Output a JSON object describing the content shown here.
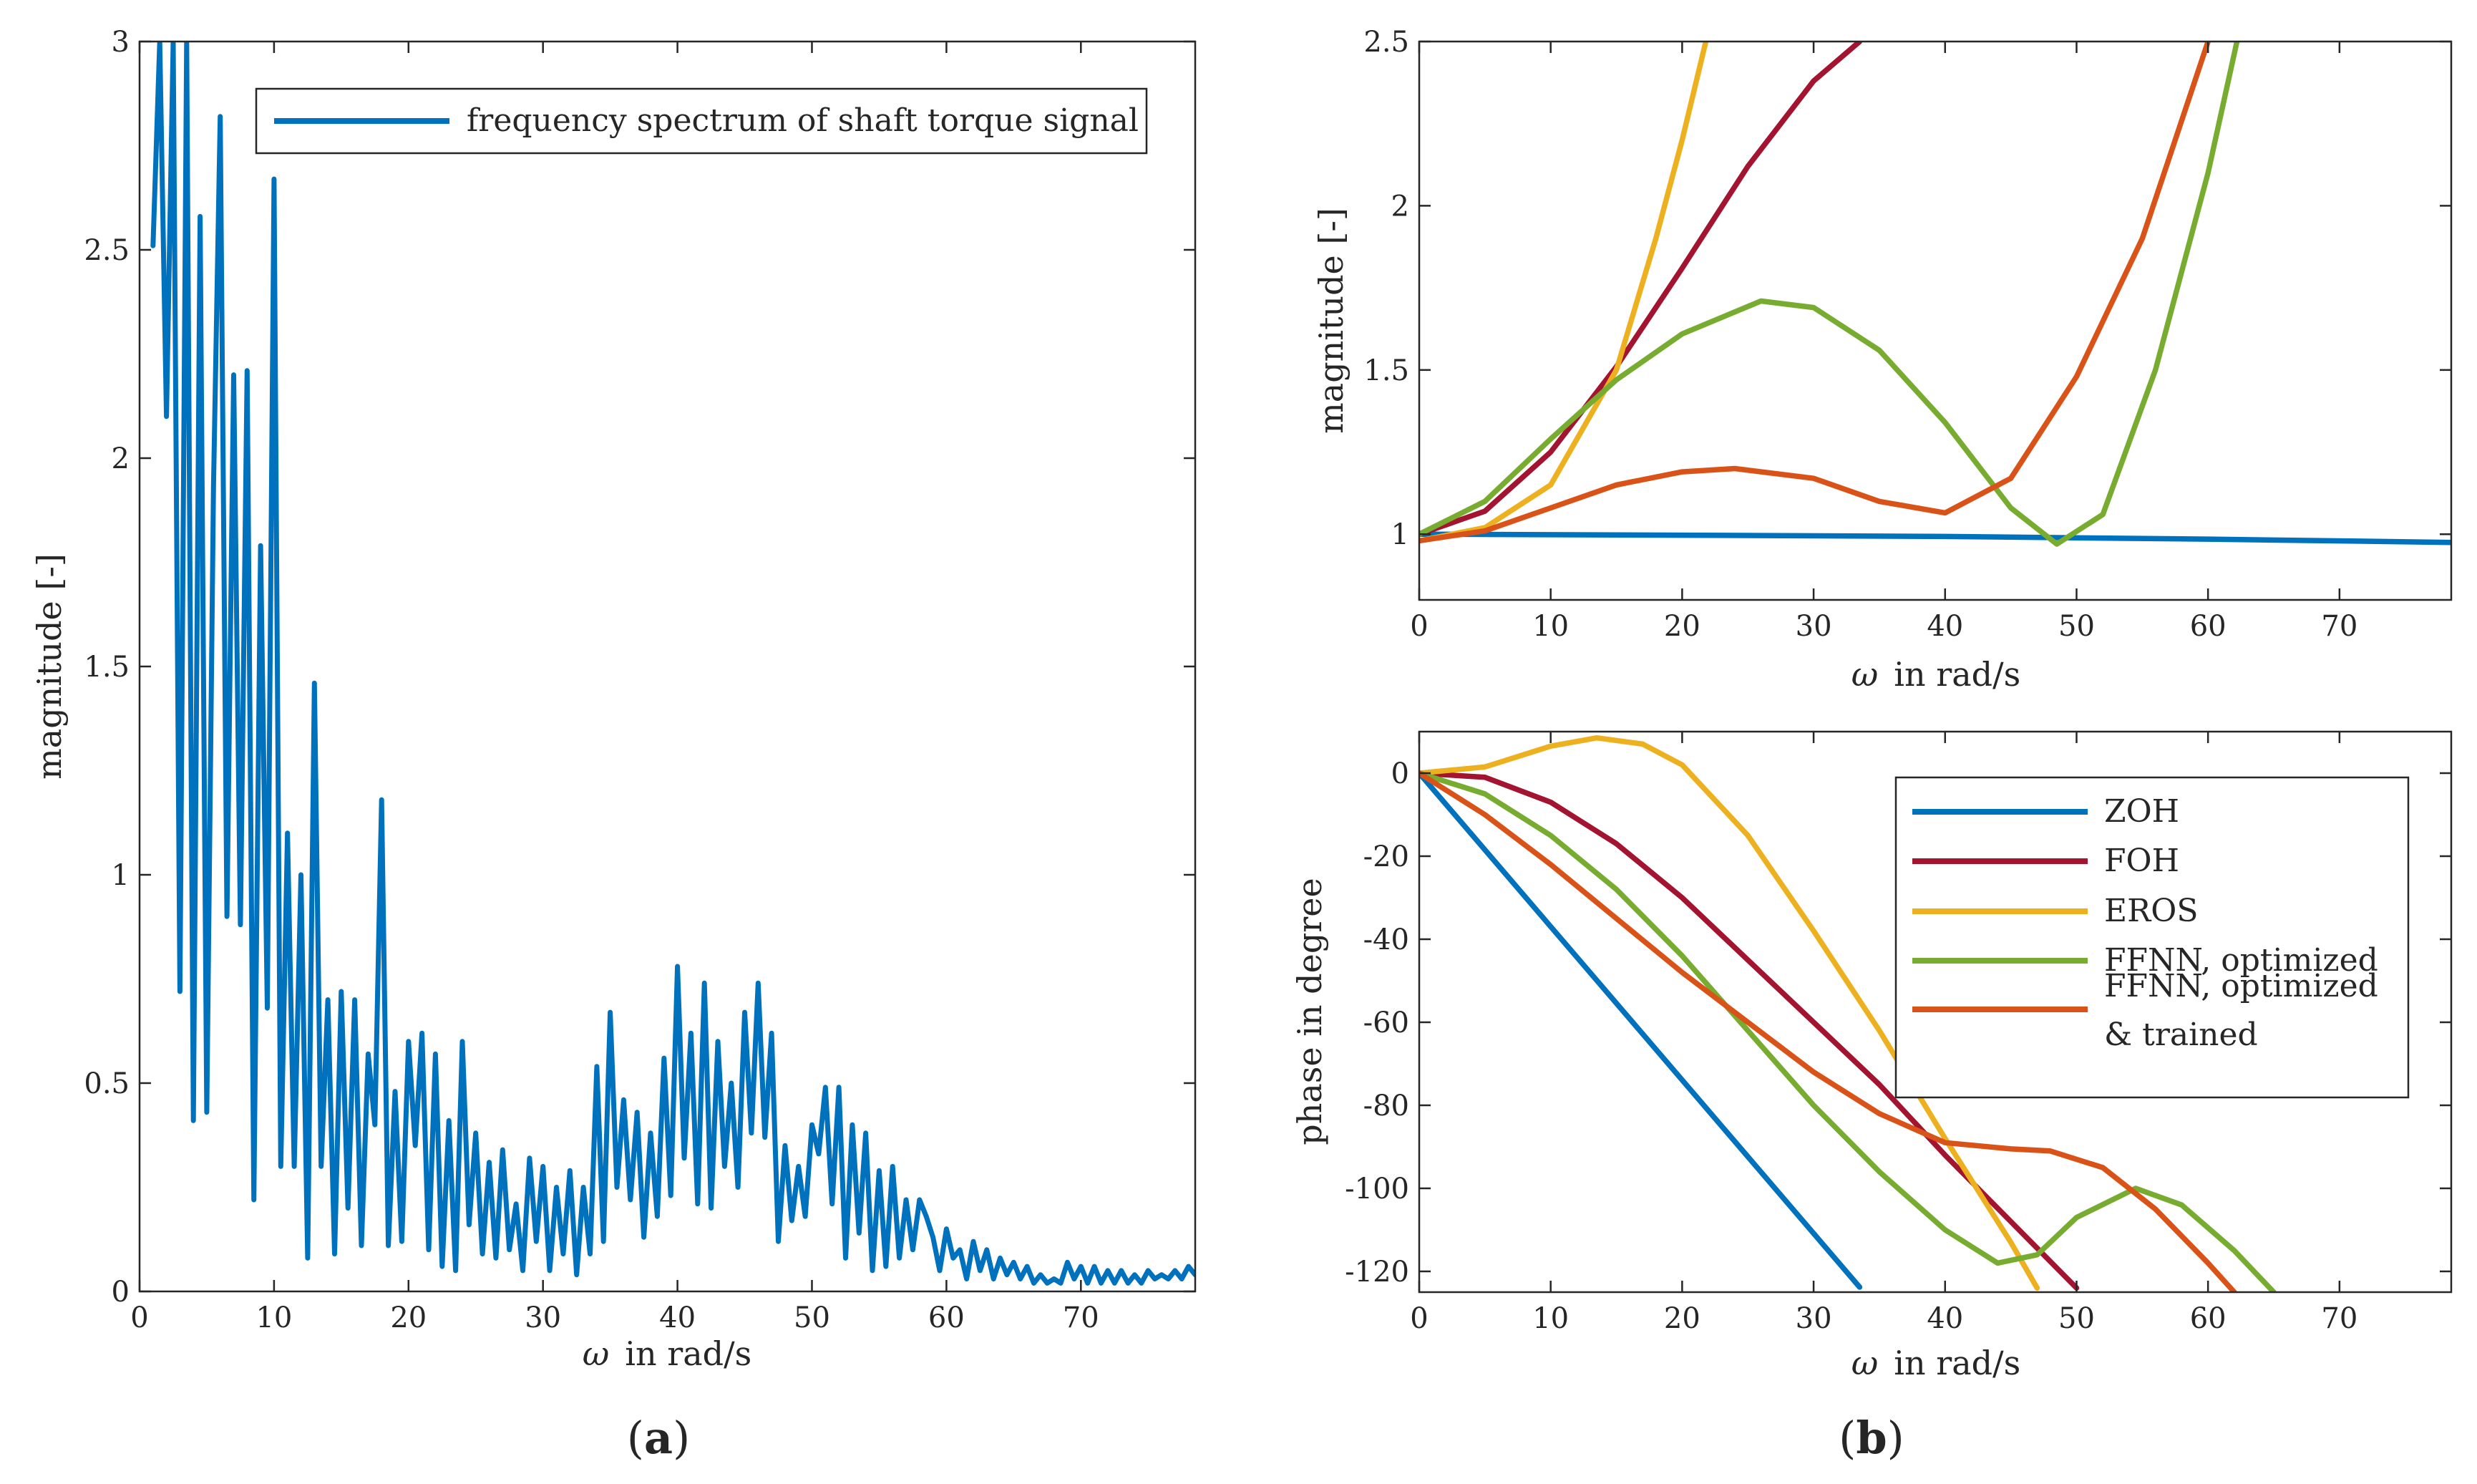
{
  "panels": {
    "a": {
      "label": "(a)",
      "label_open": "(",
      "label_letter": "a",
      "label_close": ")"
    },
    "b": {
      "label": "(b)",
      "label_open": "(",
      "label_letter": "b",
      "label_close": ")"
    }
  },
  "chart_data": [
    {
      "id": "a",
      "type": "line",
      "title": "",
      "xlabel_symbol": "ω",
      "xlabel_rest": "in rad/s",
      "ylabel": "magnitude [-]",
      "xlim": [
        0,
        78.5
      ],
      "ylim": [
        0,
        3
      ],
      "xticks": [
        0,
        10,
        20,
        30,
        40,
        50,
        60,
        70
      ],
      "yticks": [
        0,
        0.5,
        1,
        1.5,
        2,
        2.5,
        3
      ],
      "legend_position": "top-right",
      "series": [
        {
          "name": "frequency spectrum of shaft torque signal",
          "color": "#0072BD",
          "x": [
            1.0,
            1.5,
            2.0,
            2.5,
            3.0,
            3.5,
            4.0,
            4.5,
            5.0,
            5.5,
            6.0,
            6.5,
            7.0,
            7.5,
            8.0,
            8.5,
            9.0,
            9.5,
            10.0,
            10.5,
            11.0,
            11.5,
            12.0,
            12.5,
            13.0,
            13.5,
            14.0,
            14.5,
            15.0,
            15.5,
            16.0,
            16.5,
            17.0,
            17.5,
            18.0,
            18.5,
            19.0,
            19.5,
            20.0,
            20.5,
            21.0,
            21.5,
            22.0,
            22.5,
            23.0,
            23.5,
            24.0,
            24.5,
            25.0,
            25.5,
            26.0,
            26.5,
            27.0,
            27.5,
            28.0,
            28.5,
            29.0,
            29.5,
            30.0,
            30.5,
            31.0,
            31.5,
            32.0,
            32.5,
            33.0,
            33.5,
            34.0,
            34.5,
            35.0,
            35.5,
            36.0,
            36.5,
            37.0,
            37.5,
            38.0,
            38.5,
            39.0,
            39.5,
            40.0,
            40.5,
            41.0,
            41.5,
            42.0,
            42.5,
            43.0,
            43.5,
            44.0,
            44.5,
            45.0,
            45.5,
            46.0,
            46.5,
            47.0,
            47.5,
            48.0,
            48.5,
            49.0,
            49.5,
            50.0,
            50.5,
            51.0,
            51.5,
            52.0,
            52.5,
            53.0,
            53.5,
            54.0,
            54.5,
            55.0,
            55.5,
            56.0,
            56.5,
            57.0,
            57.5,
            58.0,
            58.5,
            59.0,
            59.5,
            60.0,
            60.5,
            61.0,
            61.5,
            62.0,
            62.5,
            63.0,
            63.5,
            64.0,
            64.5,
            65.0,
            65.5,
            66.0,
            66.5,
            67.0,
            67.5,
            68.0,
            68.5,
            69.0,
            69.5,
            70.0,
            70.5,
            71.0,
            71.5,
            72.0,
            72.5,
            73.0,
            73.5,
            74.0,
            74.5,
            75.0,
            75.5,
            76.0,
            76.5,
            77.0,
            77.5,
            78.0,
            78.5
          ],
          "y": [
            2.51,
            3.0,
            2.1,
            3.0,
            0.72,
            3.0,
            0.41,
            2.58,
            0.43,
            1.93,
            2.82,
            0.9,
            2.2,
            0.88,
            2.21,
            0.22,
            1.79,
            0.68,
            2.67,
            0.3,
            1.1,
            0.3,
            1.0,
            0.08,
            1.46,
            0.3,
            0.7,
            0.09,
            0.72,
            0.2,
            0.7,
            0.11,
            0.57,
            0.4,
            1.18,
            0.11,
            0.48,
            0.12,
            0.6,
            0.35,
            0.62,
            0.1,
            0.57,
            0.06,
            0.41,
            0.05,
            0.6,
            0.16,
            0.38,
            0.09,
            0.31,
            0.08,
            0.34,
            0.1,
            0.21,
            0.05,
            0.32,
            0.12,
            0.3,
            0.05,
            0.25,
            0.09,
            0.29,
            0.04,
            0.25,
            0.09,
            0.54,
            0.12,
            0.67,
            0.25,
            0.46,
            0.22,
            0.43,
            0.13,
            0.38,
            0.18,
            0.56,
            0.23,
            0.78,
            0.32,
            0.62,
            0.21,
            0.74,
            0.2,
            0.6,
            0.3,
            0.5,
            0.25,
            0.67,
            0.38,
            0.74,
            0.37,
            0.62,
            0.12,
            0.35,
            0.17,
            0.3,
            0.18,
            0.4,
            0.33,
            0.49,
            0.21,
            0.49,
            0.08,
            0.4,
            0.14,
            0.38,
            0.05,
            0.29,
            0.06,
            0.3,
            0.08,
            0.22,
            0.1,
            0.22,
            0.18,
            0.13,
            0.05,
            0.15,
            0.08,
            0.1,
            0.03,
            0.12,
            0.05,
            0.1,
            0.03,
            0.08,
            0.04,
            0.07,
            0.03,
            0.06,
            0.02,
            0.04,
            0.02,
            0.03,
            0.02,
            0.07,
            0.03,
            0.06,
            0.02,
            0.06,
            0.02,
            0.05,
            0.02,
            0.05,
            0.02,
            0.04,
            0.02,
            0.05,
            0.03,
            0.04,
            0.03,
            0.05,
            0.03,
            0.06,
            0.04
          ]
        }
      ]
    },
    {
      "id": "b-top",
      "type": "line",
      "title": "",
      "xlabel_symbol": "ω",
      "xlabel_rest": "in rad/s",
      "ylabel": "magnitude [-]",
      "xlim": [
        0,
        78.5
      ],
      "ylim": [
        0.8,
        2.5
      ],
      "xticks": [
        0,
        10,
        20,
        30,
        40,
        50,
        60,
        70
      ],
      "yticks": [
        1,
        1.5,
        2,
        2.5
      ],
      "series": [
        {
          "name": "ZOH",
          "color": "#0072BD",
          "x": [
            0,
            20,
            40,
            60,
            78.5
          ],
          "y": [
            1.0,
            0.997,
            0.993,
            0.985,
            0.975
          ]
        },
        {
          "name": "FOH",
          "color": "#A2142F",
          "x": [
            0,
            5,
            10,
            15,
            20,
            25,
            30,
            33.5
          ],
          "y": [
            1.0,
            1.07,
            1.25,
            1.51,
            1.81,
            2.12,
            2.38,
            2.5
          ]
        },
        {
          "name": "EROS",
          "color": "#EDB120",
          "x": [
            0,
            5,
            10,
            15,
            18,
            20,
            21.8
          ],
          "y": [
            0.98,
            1.02,
            1.15,
            1.5,
            1.9,
            2.2,
            2.5
          ]
        },
        {
          "name": "FFNN, optimized",
          "color": "#77AC30",
          "x": [
            0,
            5,
            10,
            15,
            20,
            26,
            30,
            35,
            40,
            45,
            48.5,
            52,
            56,
            60,
            62.2
          ],
          "y": [
            1.0,
            1.1,
            1.29,
            1.47,
            1.61,
            1.71,
            1.69,
            1.56,
            1.34,
            1.08,
            0.97,
            1.06,
            1.5,
            2.1,
            2.5
          ]
        },
        {
          "name": "FFNN, optimized & trained",
          "color": "#D95319",
          "x": [
            0,
            5,
            10,
            15,
            20,
            24,
            30,
            35,
            40,
            45,
            50,
            55,
            60
          ],
          "y": [
            0.98,
            1.01,
            1.08,
            1.15,
            1.19,
            1.2,
            1.17,
            1.1,
            1.065,
            1.17,
            1.48,
            1.9,
            2.5
          ]
        }
      ]
    },
    {
      "id": "b-bottom",
      "type": "line",
      "title": "",
      "xlabel_symbol": "ω",
      "xlabel_rest": "in rad/s",
      "ylabel": "phase in degree",
      "xlim": [
        0,
        78.5
      ],
      "ylim": [
        -125,
        10
      ],
      "xticks": [
        0,
        10,
        20,
        30,
        40,
        50,
        60,
        70
      ],
      "yticks": [
        -120,
        -100,
        -80,
        -60,
        -40,
        -20,
        0
      ],
      "legend_position": "top-right",
      "series": [
        {
          "name": "ZOH",
          "color": "#0072BD",
          "x": [
            0,
            33.5
          ],
          "y": [
            0,
            -123.8
          ]
        },
        {
          "name": "FOH",
          "color": "#A2142F",
          "x": [
            0,
            5,
            10,
            15,
            20,
            25,
            30,
            35,
            40,
            45,
            50
          ],
          "y": [
            0,
            -1,
            -7,
            -17,
            -30,
            -45,
            -60,
            -75,
            -92,
            -108,
            -124
          ]
        },
        {
          "name": "EROS",
          "color": "#EDB120",
          "x": [
            0,
            5,
            10,
            13.5,
            17,
            20,
            25,
            30,
            35,
            40,
            45,
            47
          ],
          "y": [
            0,
            1.5,
            6.5,
            8.5,
            7,
            2,
            -15,
            -38,
            -62,
            -88,
            -113,
            -124
          ]
        },
        {
          "name": "FFNN, optimized",
          "color": "#77AC30",
          "x": [
            0,
            5,
            10,
            15,
            20,
            25,
            30,
            35,
            40,
            44,
            47,
            50,
            54.5,
            58,
            62,
            65
          ],
          "y": [
            0,
            -5,
            -15,
            -28,
            -44,
            -62,
            -80,
            -96,
            -110,
            -118,
            -116,
            -107,
            -100,
            -104,
            -115,
            -125
          ]
        },
        {
          "name": "FFNN, optimized & trained",
          "color": "#D95319",
          "x": [
            0,
            5,
            10,
            15,
            20,
            25,
            30,
            35,
            40,
            45,
            48,
            52,
            56,
            60,
            62
          ],
          "y": [
            0,
            -10,
            -22,
            -35,
            -48,
            -60,
            -72,
            -82,
            -89,
            -90.5,
            -91,
            -95,
            -105,
            -118,
            -125
          ]
        }
      ]
    }
  ]
}
